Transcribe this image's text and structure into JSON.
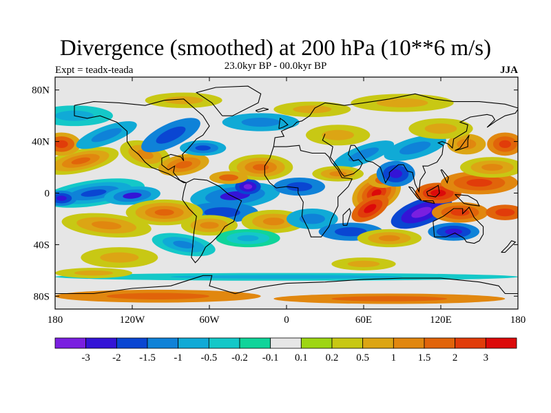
{
  "title": "Divergence (smoothed) at 200 hPa (10**6 m/s)",
  "expt_label": "Expt = teadx-teada",
  "period_label": "23.0kyr BP - 00.0kyr BP",
  "season_label": "JJA",
  "y_ticks": [
    {
      "label": "80N",
      "lat": 80
    },
    {
      "label": "40N",
      "lat": 40
    },
    {
      "label": "0",
      "lat": 0
    },
    {
      "label": "40S",
      "lat": -40
    },
    {
      "label": "80S",
      "lat": -80
    }
  ],
  "x_ticks": [
    {
      "label": "180",
      "lon": -180
    },
    {
      "label": "120W",
      "lon": -120
    },
    {
      "label": "60W",
      "lon": -60
    },
    {
      "label": "0",
      "lon": 0
    },
    {
      "label": "60E",
      "lon": 60
    },
    {
      "label": "120E",
      "lon": 120
    },
    {
      "label": "180",
      "lon": 180
    }
  ],
  "colorbar": {
    "colors": [
      "#7a1fe0",
      "#3414d6",
      "#0a46d2",
      "#0f82d8",
      "#10aad6",
      "#14c8c8",
      "#10d49a",
      "#e6e6e6",
      "#9ed614",
      "#c8c814",
      "#dca514",
      "#e1870f",
      "#e1640a",
      "#e13c0a",
      "#dc0a0a"
    ],
    "labels": [
      "-3",
      "-2",
      "-1.5",
      "-1",
      "-0.5",
      "-0.2",
      "-0.1",
      "0.1",
      "0.2",
      "0.5",
      "1",
      "1.5",
      "2",
      "3"
    ]
  },
  "map_extent": {
    "lon_min": -180,
    "lon_max": 180,
    "lat_min": -90,
    "lat_max": 90
  }
}
